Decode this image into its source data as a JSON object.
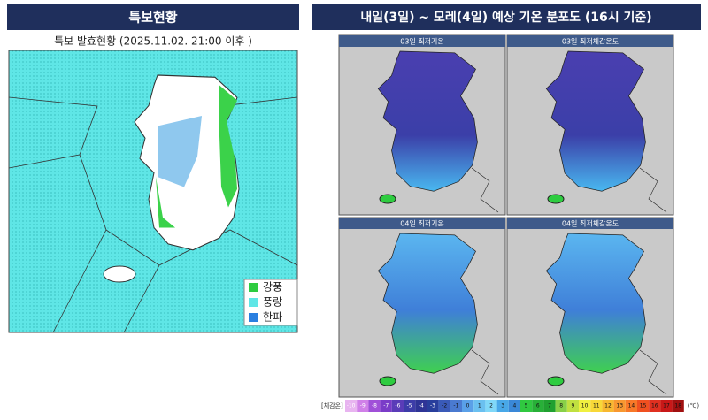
{
  "left_panel": {
    "title": "특보현황",
    "subtitle": "특보 발효현황 (2025.11.02. 21:00 이후 )",
    "legend": [
      "강풍",
      "풍랑",
      "한파"
    ]
  },
  "right_panel": {
    "title": "내일(3일) ~ 모레(4일) 예상 기온 분포도 (16시 기준)",
    "maps": [
      "03일 최저기온",
      "03일 최저체감온도",
      "04일 최저기온",
      "04일 최저체감온도"
    ],
    "colorbar": {
      "caption": "[체감온]",
      "labels": [
        "-10",
        "-9",
        "-8",
        "-7",
        "-6",
        "-5",
        "-4",
        "-3",
        "-2",
        "-1",
        "0",
        "1",
        "2",
        "3",
        "4",
        "5",
        "6",
        "7",
        "8",
        "9",
        "10",
        "11",
        "12",
        "13",
        "14",
        "15",
        "16",
        "17",
        "18"
      ],
      "unit": "(℃)"
    }
  }
}
